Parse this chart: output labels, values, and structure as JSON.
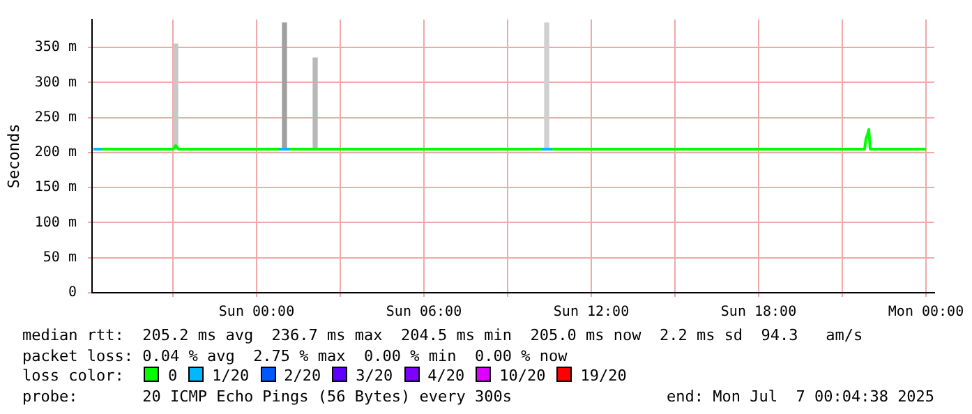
{
  "chart_data": {
    "type": "line",
    "ylabel": "Seconds",
    "legend_title": "loss color:",
    "legend": "bottom",
    "grid": true,
    "marker": "none",
    "line_style": "solid",
    "xlim": [
      "2025-07-05T18:06",
      "2025-07-07T00:18"
    ],
    "xticks": [
      {
        "value": "2025-07-05T21:00",
        "label": null
      },
      {
        "value": "2025-07-06T00:00",
        "label": "Sun 00:00"
      },
      {
        "value": "2025-07-06T03:00",
        "label": null
      },
      {
        "value": "2025-07-06T06:00",
        "label": "Sun 06:00"
      },
      {
        "value": "2025-07-06T09:00",
        "label": null
      },
      {
        "value": "2025-07-06T12:00",
        "label": "Sun 12:00"
      },
      {
        "value": "2025-07-06T15:00",
        "label": null
      },
      {
        "value": "2025-07-06T18:00",
        "label": "Sun 18:00"
      },
      {
        "value": "2025-07-06T21:00",
        "label": null
      },
      {
        "value": "2025-07-07T00:00",
        "label": "Mon 00:00"
      }
    ],
    "ylim": [
      0,
      390
    ],
    "yticks": [
      {
        "value": 0,
        "label": "0"
      },
      {
        "value": 50,
        "label": "50 m"
      },
      {
        "value": 100,
        "label": "100 m"
      },
      {
        "value": 150,
        "label": "150 m"
      },
      {
        "value": 200,
        "label": "200 m"
      },
      {
        "value": 250,
        "label": "250 m"
      },
      {
        "value": 300,
        "label": "300 m"
      },
      {
        "value": 350,
        "label": "350 m"
      }
    ],
    "series": [
      {
        "type": "bar",
        "x": [
          "2025-07-05T21:06",
          "2025-07-06T01:00",
          "2025-07-06T02:06",
          "2025-07-06T10:24"
        ],
        "base": [
          205,
          205,
          205,
          205
        ],
        "values": [
          150,
          180,
          130,
          180
        ],
        "colors": [
          "#c8c8c8",
          "#a0a0a0",
          "#b8b8b8",
          "#d0d0d0"
        ]
      },
      {
        "name": "0",
        "color": "#00ff00",
        "x": [
          "2025-07-05T18:27",
          "2025-07-05T21:00",
          "2025-07-05T21:06",
          "2025-07-05T21:12",
          "2025-07-06T00:48",
          "2025-07-06T01:00",
          "2025-07-06T01:12",
          "2025-07-06T10:12",
          "2025-07-06T10:24",
          "2025-07-06T10:36",
          "2025-07-06T21:48",
          "2025-07-06T21:51",
          "2025-07-06T21:54",
          "2025-07-06T21:57",
          "2025-07-06T22:00",
          "2025-07-07T00:00"
        ],
        "values": [
          205,
          205,
          210,
          205,
          205,
          null,
          205,
          205,
          null,
          205,
          205,
          220,
          225,
          233,
          205,
          205
        ]
      },
      {
        "name": "1/20",
        "color": "#00b8ff",
        "x": [
          "2025-07-05T18:09",
          "2025-07-05T18:27",
          "2025-07-05T18:30",
          "2025-07-06T00:48",
          "2025-07-06T01:12",
          "2025-07-06T01:15",
          "2025-07-06T10:12",
          "2025-07-06T10:36"
        ],
        "values": [
          205,
          205,
          null,
          205,
          205,
          null,
          205,
          205
        ]
      },
      {
        "name": "2/20",
        "color": "#0059ff"
      },
      {
        "name": "3/20",
        "color": "#5e00ff"
      },
      {
        "name": "4/20",
        "color": "#7e00ff"
      },
      {
        "name": "10/20",
        "color": "#dd00ff"
      },
      {
        "name": "19/20",
        "color": "#ff0000"
      }
    ],
    "annotations": [
      "median rtt:  205.2 ms avg  236.7 ms max  204.5 ms min  205.0 ms now  2.2 ms sd  94.3   am/s",
      "packet loss: 0.04 % avg  2.75 % max  0.00 % min  0.00 % now",
      "probe:       20 ICMP Echo Pings (56 Bytes) every 300s",
      "end: Mon Jul  7 00:04:38 2025"
    ]
  }
}
